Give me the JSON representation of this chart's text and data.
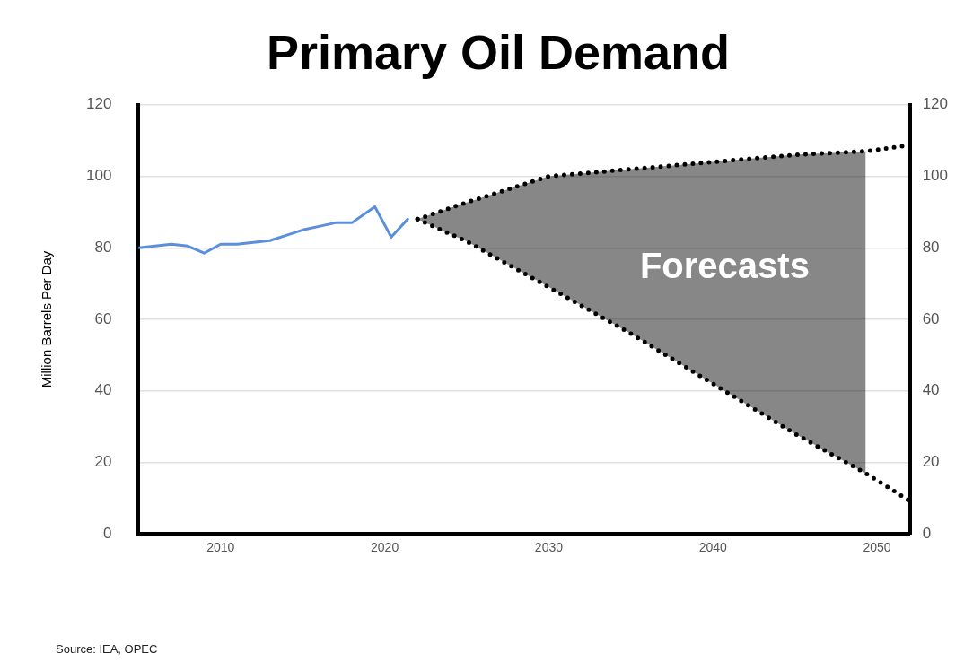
{
  "chart_data": {
    "type": "line",
    "title": "Primary Oil Demand",
    "ylabel": "Million Barrels Per Day",
    "xlim": [
      2005,
      2052
    ],
    "xticks": [
      2010,
      2020,
      2030,
      2040,
      2050
    ],
    "ylim": [
      0,
      120
    ],
    "yticks": [
      0,
      20,
      40,
      60,
      80,
      100,
      120
    ],
    "y2lim": [
      0,
      120
    ],
    "y2ticks": [
      0,
      20,
      40,
      60,
      80,
      100,
      120
    ],
    "grid": "y",
    "legend": false,
    "series": [
      {
        "type": "line",
        "color": "#5b8fdc",
        "x": [
          2005,
          2006,
          2007,
          2008,
          2009,
          2010,
          2011,
          2012,
          2013,
          2014,
          2015,
          2016,
          2017,
          2018,
          2019.4,
          2020.4,
          2021.4
        ],
        "values": [
          80,
          80.5,
          81,
          80.5,
          78.5,
          81,
          81,
          81.5,
          82,
          83.5,
          85,
          86,
          87,
          87,
          91.5,
          83,
          88
        ]
      },
      {
        "type": "line",
        "color": "#000000",
        "line_style": "dotted",
        "x": [
          2022,
          2025,
          2030,
          2035,
          2040,
          2045,
          2049.3,
          2052
        ],
        "values": [
          88,
          92.7,
          100,
          102,
          104,
          106,
          107,
          108.7
        ],
        "lower": [
          88,
          81.8,
          69,
          56,
          42,
          28,
          17,
          null
        ],
        "upper": [
          88,
          92.7,
          100,
          102,
          104,
          106,
          107,
          null
        ]
      },
      {
        "type": "line",
        "color": "#000000",
        "line_style": "dotted",
        "x": [
          2022,
          2025,
          2030,
          2035,
          2040,
          2045,
          2049.3,
          2052
        ],
        "values": [
          88,
          81.8,
          69,
          56,
          42,
          28,
          17,
          9.2
        ]
      }
    ],
    "annotations": [
      "Forecasts",
      "Source: IEA, OPEC"
    ]
  }
}
